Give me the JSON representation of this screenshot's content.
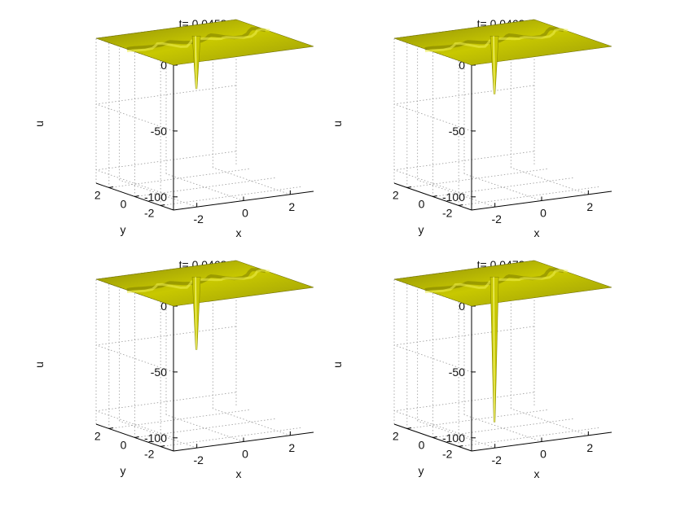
{
  "chart_data": [
    {
      "type": "surface",
      "title": "t= 0.0458",
      "xlabel": "x",
      "ylabel": "y",
      "zlabel": "u",
      "x_ticks": [
        "-2",
        "0",
        "2"
      ],
      "y_ticks": [
        "2",
        "0",
        "-2"
      ],
      "z_ticks": [
        "0",
        "-50",
        "-100"
      ],
      "xlim": [
        -3,
        3
      ],
      "ylim": [
        -3,
        3
      ],
      "zlim": [
        -110,
        0
      ],
      "grid": true,
      "surface_color": "#c8c800",
      "peak": {
        "x": 0.3,
        "y": 1.2,
        "u_min": -40
      }
    },
    {
      "type": "surface",
      "title": "t= 0.0463",
      "xlabel": "x",
      "ylabel": "y",
      "zlabel": "u",
      "x_ticks": [
        "-2",
        "0",
        "2"
      ],
      "y_ticks": [
        "2",
        "0",
        "-2"
      ],
      "z_ticks": [
        "0",
        "-50",
        "-100"
      ],
      "xlim": [
        -3,
        3
      ],
      "ylim": [
        -3,
        3
      ],
      "zlim": [
        -110,
        0
      ],
      "grid": true,
      "surface_color": "#c8c800",
      "peak": {
        "x": 0.3,
        "y": 1.2,
        "u_min": -44
      }
    },
    {
      "type": "surface",
      "title": "t= 0.0468",
      "xlabel": "x",
      "ylabel": "y",
      "zlabel": "u",
      "x_ticks": [
        "-2",
        "0",
        "2"
      ],
      "y_ticks": [
        "2",
        "0",
        "-2"
      ],
      "z_ticks": [
        "0",
        "-50",
        "-100"
      ],
      "xlim": [
        -3,
        3
      ],
      "ylim": [
        -3,
        3
      ],
      "zlim": [
        -110,
        0
      ],
      "grid": true,
      "surface_color": "#c8c800",
      "peak": {
        "x": 0.3,
        "y": 1.2,
        "u_min": -55
      }
    },
    {
      "type": "surface",
      "title": "t= 0.0473",
      "xlabel": "x",
      "ylabel": "y",
      "zlabel": "u",
      "x_ticks": [
        "-2",
        "0",
        "2"
      ],
      "y_ticks": [
        "2",
        "0",
        "-2"
      ],
      "z_ticks": [
        "0",
        "-50",
        "-100"
      ],
      "xlim": [
        -3,
        3
      ],
      "ylim": [
        -3,
        3
      ],
      "zlim": [
        -110,
        0
      ],
      "grid": true,
      "surface_color": "#c8c800",
      "peak": {
        "x": 0.3,
        "y": 1.2,
        "u_min": -110
      }
    }
  ]
}
